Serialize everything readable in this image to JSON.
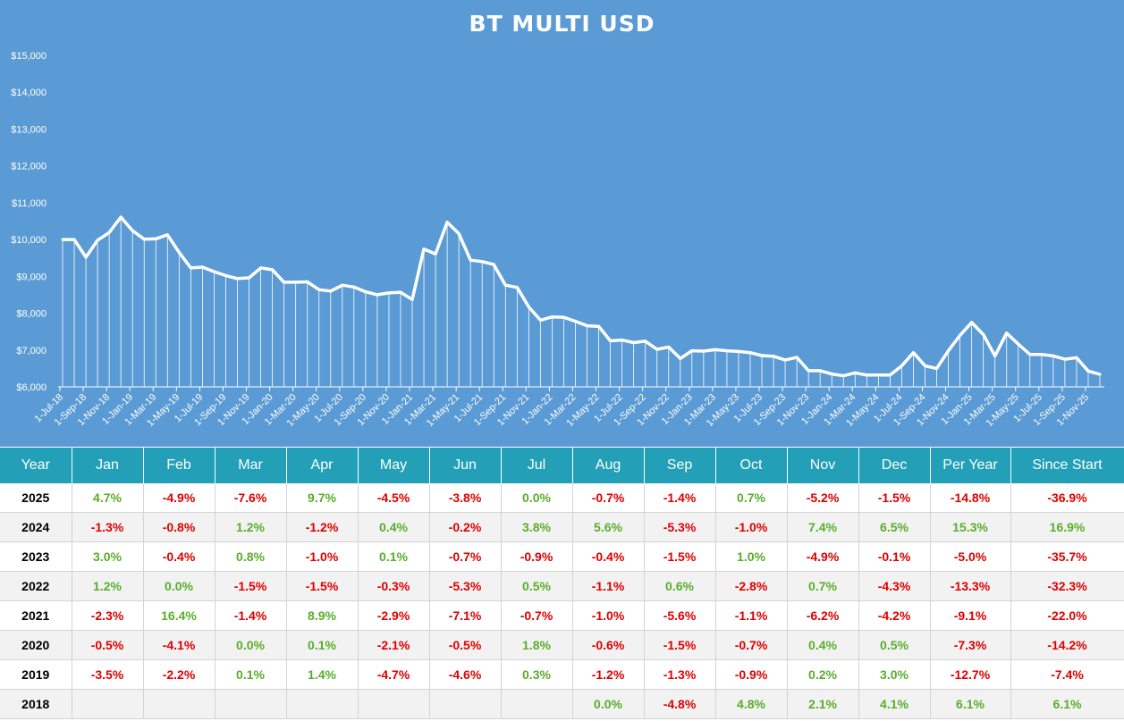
{
  "chart_data": {
    "type": "area",
    "title": "BT MULTI USD",
    "x_tick_labels": [
      "1-Jul-18",
      "1-Sep-18",
      "1-Nov-18",
      "1-Jan-19",
      "1-Mar-19",
      "1-May-19",
      "1-Jul-19",
      "1-Sep-19",
      "1-Nov-19",
      "1-Jan-20",
      "1-Mar-20",
      "1-May-20",
      "1-Jul-20",
      "1-Sep-20",
      "1-Nov-20",
      "1-Jan-21",
      "1-Mar-21",
      "1-May-21",
      "1-Jul-21",
      "1-Sep-21",
      "1-Nov-21",
      "1-Jan-22",
      "1-Mar-22",
      "1-May-22",
      "1-Jul-22",
      "1-Sep-22",
      "1-Nov-22",
      "1-Jan-23",
      "1-Mar-23",
      "1-May-23",
      "1-Jul-23",
      "1-Sep-23",
      "1-Nov-23",
      "1-Jan-24",
      "1-Mar-24",
      "1-May-24",
      "1-Jul-24",
      "1-Sep-24",
      "1-Nov-24",
      "1-Jan-25",
      "1-Mar-25",
      "1-May-25",
      "1-Jul-25",
      "1-Sep-25",
      "1-Nov-25"
    ],
    "y_tick_labels": [
      "$6,000",
      "$7,000",
      "$8,000",
      "$9,000",
      "$10,000",
      "$11,000",
      "$12,000",
      "$13,000",
      "$14,000",
      "$15,000"
    ],
    "ylim": [
      6000,
      15000
    ],
    "grid": false,
    "series": [
      {
        "x": [
          "1-Jul-18",
          "1-Aug-18",
          "1-Sep-18",
          "1-Oct-18",
          "1-Nov-18",
          "1-Dec-18",
          "1-Jan-19",
          "1-Feb-19",
          "1-Mar-19",
          "1-Apr-19",
          "1-May-19",
          "1-Jun-19",
          "1-Jul-19",
          "1-Aug-19",
          "1-Sep-19",
          "1-Oct-19",
          "1-Nov-19",
          "1-Dec-19",
          "1-Jan-20",
          "1-Feb-20",
          "1-Mar-20",
          "1-Apr-20",
          "1-May-20",
          "1-Jun-20",
          "1-Jul-20",
          "1-Aug-20",
          "1-Sep-20",
          "1-Oct-20",
          "1-Nov-20",
          "1-Dec-20",
          "1-Jan-21",
          "1-Feb-21",
          "1-Mar-21",
          "1-Apr-21",
          "1-May-21",
          "1-Jun-21",
          "1-Jul-21",
          "1-Aug-21",
          "1-Sep-21",
          "1-Oct-21",
          "1-Nov-21",
          "1-Dec-21",
          "1-Jan-22",
          "1-Feb-22",
          "1-Mar-22",
          "1-Apr-22",
          "1-May-22",
          "1-Jun-22",
          "1-Jul-22",
          "1-Aug-22",
          "1-Sep-22",
          "1-Oct-22",
          "1-Nov-22",
          "1-Dec-22",
          "1-Jan-23",
          "1-Feb-23",
          "1-Mar-23",
          "1-Apr-23",
          "1-May-23",
          "1-Jun-23",
          "1-Jul-23",
          "1-Aug-23",
          "1-Sep-23",
          "1-Oct-23",
          "1-Nov-23",
          "1-Dec-23",
          "1-Jan-24",
          "1-Feb-24",
          "1-Mar-24",
          "1-Apr-24",
          "1-May-24",
          "1-Jun-24",
          "1-Jul-24",
          "1-Aug-24",
          "1-Sep-24",
          "1-Oct-24",
          "1-Nov-24",
          "1-Dec-24",
          "1-Jan-25",
          "1-Feb-25",
          "1-Mar-25",
          "1-Apr-25",
          "1-May-25",
          "1-Jun-25",
          "1-Jul-25",
          "1-Aug-25",
          "1-Sep-25",
          "1-Oct-25",
          "1-Nov-25",
          "1-Dec-25"
        ],
        "values": [
          10000,
          10000,
          9520,
          9980,
          10190,
          10610,
          10240,
          10010,
          10020,
          10130,
          9650,
          9230,
          9250,
          9130,
          9020,
          8940,
          8960,
          9230,
          9180,
          8840,
          8840,
          8850,
          8640,
          8600,
          8760,
          8710,
          8580,
          8500,
          8550,
          8570,
          8370,
          9740,
          9610,
          10470,
          10160,
          9440,
          9400,
          9320,
          8760,
          8700,
          8170,
          7810,
          7900,
          7890,
          7780,
          7660,
          7640,
          7250,
          7270,
          7200,
          7240,
          7020,
          7080,
          6770,
          6980,
          6970,
          7010,
          6980,
          6960,
          6930,
          6850,
          6830,
          6730,
          6800,
          6440,
          6440,
          6350,
          6300,
          6380,
          6320,
          6320,
          6320,
          6570,
          6930,
          6570,
          6500,
          6980,
          7400,
          7750,
          7420,
          6840,
          7460,
          7160,
          6880,
          6880,
          6840,
          6750,
          6790,
          6430,
          6340
        ]
      }
    ]
  },
  "table": {
    "headers": [
      "Year",
      "Jan",
      "Feb",
      "Mar",
      "Apr",
      "May",
      "Jun",
      "Jul",
      "Aug",
      "Sep",
      "Oct",
      "Nov",
      "Dec",
      "Per Year",
      "Since Start"
    ],
    "rows": [
      [
        "2025",
        "4.7%",
        "-4.9%",
        "-7.6%",
        "9.7%",
        "-4.5%",
        "-3.8%",
        "0.0%",
        "-0.7%",
        "-1.4%",
        "0.7%",
        "-5.2%",
        "-1.5%",
        "-14.8%",
        "-36.9%"
      ],
      [
        "2024",
        "-1.3%",
        "-0.8%",
        "1.2%",
        "-1.2%",
        "0.4%",
        "-0.2%",
        "3.8%",
        "5.6%",
        "-5.3%",
        "-1.0%",
        "7.4%",
        "6.5%",
        "15.3%",
        "16.9%"
      ],
      [
        "2023",
        "3.0%",
        "-0.4%",
        "0.8%",
        "-1.0%",
        "0.1%",
        "-0.7%",
        "-0.9%",
        "-0.4%",
        "-1.5%",
        "1.0%",
        "-4.9%",
        "-0.1%",
        "-5.0%",
        "-35.7%"
      ],
      [
        "2022",
        "1.2%",
        "0.0%",
        "-1.5%",
        "-1.5%",
        "-0.3%",
        "-5.3%",
        "0.5%",
        "-1.1%",
        "0.6%",
        "-2.8%",
        "0.7%",
        "-4.3%",
        "-13.3%",
        "-32.3%"
      ],
      [
        "2021",
        "-2.3%",
        "16.4%",
        "-1.4%",
        "8.9%",
        "-2.9%",
        "-7.1%",
        "-0.7%",
        "-1.0%",
        "-5.6%",
        "-1.1%",
        "-6.2%",
        "-4.2%",
        "-9.1%",
        "-22.0%"
      ],
      [
        "2020",
        "-0.5%",
        "-4.1%",
        "0.0%",
        "0.1%",
        "-2.1%",
        "-0.5%",
        "1.8%",
        "-0.6%",
        "-1.5%",
        "-0.7%",
        "0.4%",
        "0.5%",
        "-7.3%",
        "-14.2%"
      ],
      [
        "2019",
        "-3.5%",
        "-2.2%",
        "0.1%",
        "1.4%",
        "-4.7%",
        "-4.6%",
        "0.3%",
        "-1.2%",
        "-1.3%",
        "-0.9%",
        "0.2%",
        "3.0%",
        "-12.7%",
        "-7.4%"
      ],
      [
        "2018",
        "",
        "",
        "",
        "",
        "",
        "",
        "",
        "0.0%",
        "-4.8%",
        "4.8%",
        "2.1%",
        "4.1%",
        "6.1%",
        "6.1%"
      ]
    ]
  },
  "colors": {
    "chart_background": "#5b9bd5",
    "line": "#ffffff",
    "header_background": "#23a0b8",
    "positive": "#5aad2b",
    "negative": "#e00000"
  }
}
